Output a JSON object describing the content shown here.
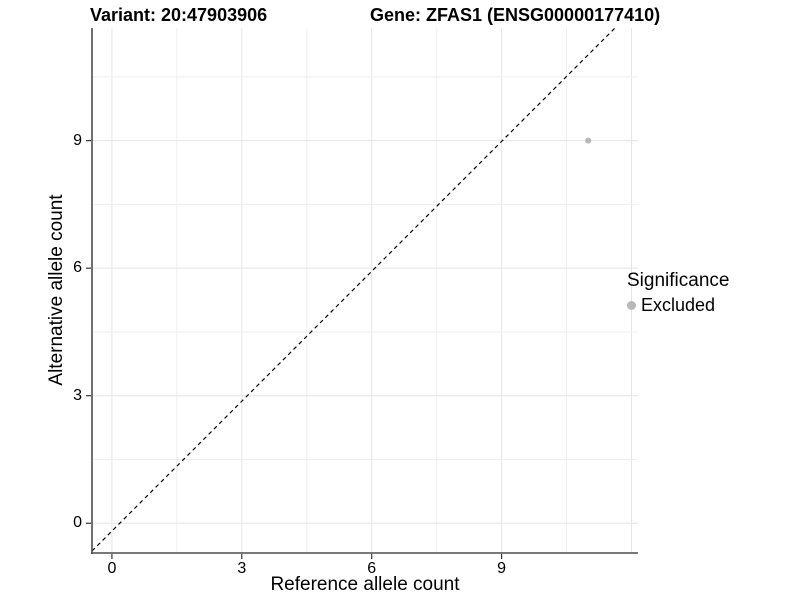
{
  "titles": {
    "left": "Variant: 20:47903906",
    "right": "Gene: ZFAS1 (ENSG00000177410)"
  },
  "legend": {
    "title": "Significance",
    "position": "right",
    "items": [
      {
        "label": "Excluded",
        "color": "#b8b8b8"
      }
    ]
  },
  "chart_data": {
    "type": "scatter",
    "title_left": "Variant: 20:47903906",
    "title_right": "Gene: ZFAS1 (ENSG00000177410)",
    "xlabel": "Reference allele count",
    "ylabel": "Alternative allele count",
    "x_ticks": [
      0,
      3,
      6,
      9
    ],
    "y_ticks": [
      0,
      3,
      6,
      9
    ],
    "xlim": [
      -0.46,
      12.15
    ],
    "ylim": [
      -0.7,
      11.65
    ],
    "grid": {
      "show": true,
      "major_step": 3,
      "minor_step": 1.5,
      "x_max": 12,
      "y_max": 10.5
    },
    "legend_title": "Significance",
    "legend_position": "right",
    "series": [
      {
        "name": "Excluded",
        "color": "#b8b8b8",
        "marker": "circle",
        "points": [
          {
            "x": 11,
            "y": 9
          }
        ]
      }
    ],
    "reference_line": {
      "kind": "identity",
      "equation": "y = x",
      "slope": 1,
      "intercept": 0,
      "style": "dashed",
      "color": "#000000"
    }
  },
  "colors": {
    "background": "#ffffff",
    "grid_major": "#e5e5e5",
    "grid_minor": "#efefef",
    "axis_line": "#4d4d4d",
    "tick_mark": "#333333",
    "text": "#000000",
    "point": "#b8b8b8"
  }
}
